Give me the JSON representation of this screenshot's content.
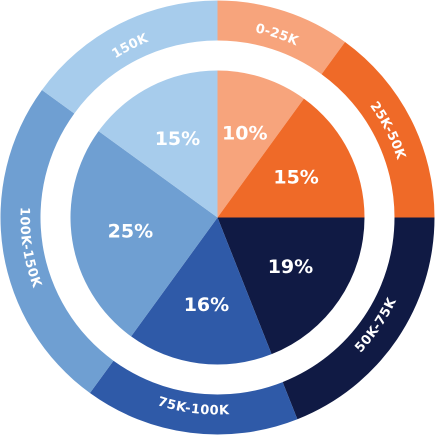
{
  "chart_data": {
    "type": "pie",
    "title": "",
    "categories": [
      "0-25K",
      "25K-50K",
      "50K-75K",
      "75K-100K",
      "100K-150K",
      "150K"
    ],
    "values": [
      10,
      15,
      19,
      16,
      25,
      15
    ],
    "labels": [
      "10%",
      "15%",
      "19%",
      "16%",
      "25%",
      "15%"
    ],
    "colors": [
      "#f7a47c",
      "#ef6a28",
      "#101a44",
      "#2f5aa8",
      "#6f9fd2",
      "#a7ccec"
    ],
    "ring": {
      "labels": [
        "0-25K",
        "25K-50K",
        "50K-75K",
        "75K-100K",
        "100K-150K",
        "150K"
      ],
      "colors": [
        "#f7a47c",
        "#ef6a28",
        "#101a44",
        "#2f5aa8",
        "#6f9fd2",
        "#a7ccec"
      ]
    },
    "start": "12 o'clock",
    "direction": "clockwise",
    "legend": "none"
  }
}
